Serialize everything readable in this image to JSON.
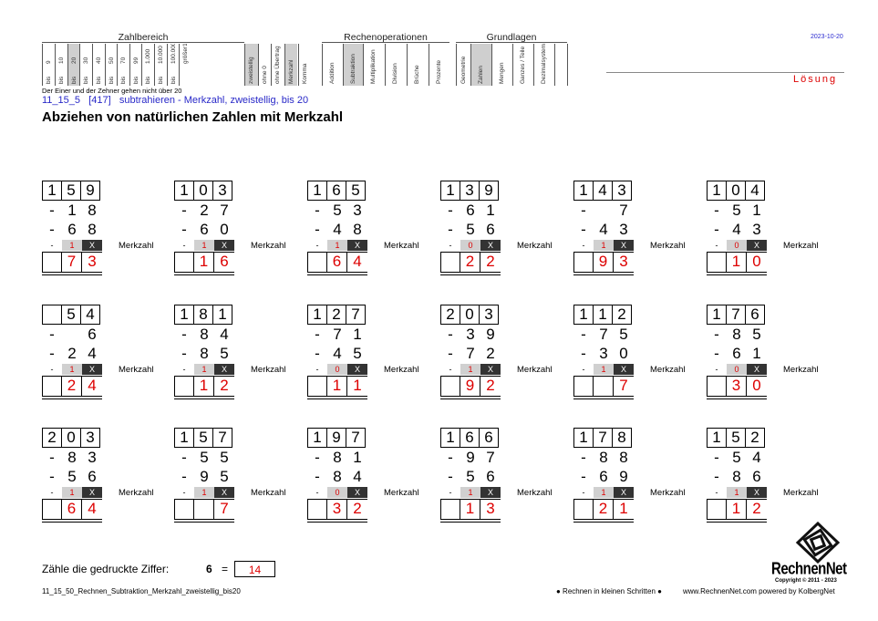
{
  "header": {
    "groups": [
      {
        "name": "Zahlbereich"
      },
      {
        "name": "Rechenoperationen"
      },
      {
        "name": "Grundlagen"
      }
    ],
    "range_cols": [
      {
        "top": "9",
        "bot": "bis"
      },
      {
        "top": "10",
        "bot": "bis"
      },
      {
        "top": "20",
        "bot": "bis"
      },
      {
        "top": "30",
        "bot": "bis"
      },
      {
        "top": "40",
        "bot": "bis"
      },
      {
        "top": "50",
        "bot": "bis"
      },
      {
        "top": "70",
        "bot": "bis"
      },
      {
        "top": "99",
        "bot": "bis"
      },
      {
        "top": "1.000",
        "bot": "bis"
      },
      {
        "top": "10.000",
        "bot": "bis"
      },
      {
        "top": "100.000",
        "bot": "bis"
      },
      {
        "top": "größer100.000",
        "bot": ""
      }
    ],
    "mid_cols": [
      "zweistellig",
      "ohne 0",
      "ohne Übertrag",
      "Merkzahl",
      "Komma"
    ],
    "op_cols": [
      "Addition",
      "Subtraktion",
      "Multiplikation",
      "Division",
      "Brüche",
      "Prozente"
    ],
    "basic_cols": [
      "Geometrie",
      "Zahlen",
      "Mengen",
      "Ganzes / Teile",
      "Dezimalsystem"
    ],
    "note": "Der Einer und der Zehner gehen nicht über 20"
  },
  "date": "2023-10-20",
  "solution_label": "Lösung",
  "code": "11_15_5",
  "number": "[417]",
  "subtitle": "subtrahieren - Merkzahl, zweistellig, bis 20",
  "title": "Abziehen von natürlichen Zahlen mit Merkzahl",
  "merk_label": "Merkzahl",
  "problems": [
    {
      "a": [
        "1",
        "5",
        "9"
      ],
      "b": [
        "",
        "1",
        "8"
      ],
      "c": [
        "",
        "6",
        "8"
      ],
      "m": "1",
      "r": [
        "",
        "7",
        "3"
      ]
    },
    {
      "a": [
        "1",
        "0",
        "3"
      ],
      "b": [
        "",
        "2",
        "7"
      ],
      "c": [
        "",
        "6",
        "0"
      ],
      "m": "1",
      "r": [
        "",
        "1",
        "6"
      ]
    },
    {
      "a": [
        "1",
        "6",
        "5"
      ],
      "b": [
        "",
        "5",
        "3"
      ],
      "c": [
        "",
        "4",
        "8"
      ],
      "m": "1",
      "r": [
        "",
        "6",
        "4"
      ]
    },
    {
      "a": [
        "1",
        "3",
        "9"
      ],
      "b": [
        "",
        "6",
        "1"
      ],
      "c": [
        "",
        "5",
        "6"
      ],
      "m": "0",
      "r": [
        "",
        "2",
        "2"
      ]
    },
    {
      "a": [
        "1",
        "4",
        "3"
      ],
      "b": [
        "",
        "",
        "7"
      ],
      "c": [
        "",
        "4",
        "3"
      ],
      "m": "1",
      "r": [
        "",
        "9",
        "3"
      ]
    },
    {
      "a": [
        "1",
        "0",
        "4"
      ],
      "b": [
        "",
        "5",
        "1"
      ],
      "c": [
        "",
        "4",
        "3"
      ],
      "m": "0",
      "r": [
        "",
        "1",
        "0"
      ]
    },
    {
      "a": [
        "",
        "5",
        "4"
      ],
      "b": [
        "",
        "",
        "6"
      ],
      "c": [
        "",
        "2",
        "4"
      ],
      "m": "1",
      "r": [
        "",
        "2",
        "4"
      ]
    },
    {
      "a": [
        "1",
        "8",
        "1"
      ],
      "b": [
        "",
        "8",
        "4"
      ],
      "c": [
        "",
        "8",
        "5"
      ],
      "m": "1",
      "r": [
        "",
        "1",
        "2"
      ]
    },
    {
      "a": [
        "1",
        "2",
        "7"
      ],
      "b": [
        "",
        "7",
        "1"
      ],
      "c": [
        "",
        "4",
        "5"
      ],
      "m": "0",
      "r": [
        "",
        "1",
        "1"
      ]
    },
    {
      "a": [
        "2",
        "0",
        "3"
      ],
      "b": [
        "",
        "3",
        "9"
      ],
      "c": [
        "",
        "7",
        "2"
      ],
      "m": "1",
      "r": [
        "",
        "9",
        "2"
      ]
    },
    {
      "a": [
        "1",
        "1",
        "2"
      ],
      "b": [
        "",
        "7",
        "5"
      ],
      "c": [
        "",
        "3",
        "0"
      ],
      "m": "1",
      "r": [
        "",
        "",
        "7"
      ]
    },
    {
      "a": [
        "1",
        "7",
        "6"
      ],
      "b": [
        "",
        "8",
        "5"
      ],
      "c": [
        "",
        "6",
        "1"
      ],
      "m": "0",
      "r": [
        "",
        "3",
        "0"
      ]
    },
    {
      "a": [
        "2",
        "0",
        "3"
      ],
      "b": [
        "",
        "8",
        "3"
      ],
      "c": [
        "",
        "5",
        "6"
      ],
      "m": "1",
      "r": [
        "",
        "6",
        "4"
      ]
    },
    {
      "a": [
        "1",
        "5",
        "7"
      ],
      "b": [
        "",
        "5",
        "5"
      ],
      "c": [
        "",
        "9",
        "5"
      ],
      "m": "1",
      "r": [
        "",
        "",
        "7"
      ]
    },
    {
      "a": [
        "1",
        "9",
        "7"
      ],
      "b": [
        "",
        "8",
        "1"
      ],
      "c": [
        "",
        "8",
        "4"
      ],
      "m": "0",
      "r": [
        "",
        "3",
        "2"
      ]
    },
    {
      "a": [
        "1",
        "6",
        "6"
      ],
      "b": [
        "",
        "9",
        "7"
      ],
      "c": [
        "",
        "5",
        "6"
      ],
      "m": "1",
      "r": [
        "",
        "1",
        "3"
      ]
    },
    {
      "a": [
        "1",
        "7",
        "8"
      ],
      "b": [
        "",
        "8",
        "8"
      ],
      "c": [
        "",
        "6",
        "9"
      ],
      "m": "1",
      "r": [
        "",
        "2",
        "1"
      ]
    },
    {
      "a": [
        "1",
        "5",
        "2"
      ],
      "b": [
        "",
        "5",
        "4"
      ],
      "c": [
        "",
        "8",
        "6"
      ],
      "m": "1",
      "r": [
        "",
        "1",
        "2"
      ]
    }
  ],
  "minus": "-",
  "x_mark": "X",
  "count": {
    "label": "Zähle die gedruckte Ziffer:",
    "digit": "6",
    "eq": "=",
    "answer": "14"
  },
  "footer": {
    "file": "11_15_50_Rechnen_Subtraktion_Merkzahl_zweistellig_bis20",
    "slogan": "● Rechnen in kleinen Schritten ●",
    "site": "www.RechnenNet.com powered by KolbergNet",
    "brand": "RechnenNet",
    "copyright": "Copyright © 2011 - 2023"
  }
}
